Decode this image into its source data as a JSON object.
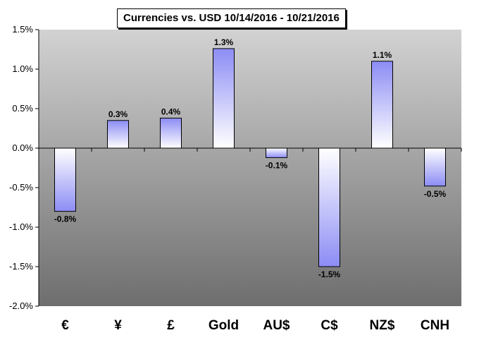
{
  "chart_data": {
    "type": "bar",
    "title": "Currencies vs. USD 10/14/2016 - 10/21/2016",
    "categories": [
      "€",
      "¥",
      "£",
      "Gold",
      "AU$",
      "C$",
      "NZ$",
      "CNH"
    ],
    "values": [
      -0.8,
      0.35,
      0.38,
      1.26,
      -0.12,
      -1.5,
      1.1,
      -0.48
    ],
    "data_labels": [
      "-0.8%",
      "0.3%",
      "0.4%",
      "1.3%",
      "-0.1%",
      "-1.5%",
      "1.1%",
      "-0.5%"
    ],
    "ylim": [
      -2.0,
      1.5
    ],
    "yticks": [
      1.5,
      1.0,
      0.5,
      0.0,
      -0.5,
      -1.0,
      -1.5,
      -2.0
    ],
    "ytick_labels": [
      "1.5%",
      "1.0%",
      "0.5%",
      "0.0%",
      "-0.5%",
      "-1.0%",
      "-1.5%",
      "-2.0%"
    ],
    "xlabel": "",
    "ylabel": "",
    "grid": false,
    "legend": "none",
    "colors": {
      "bar_gradient_start": "#8c8cf5",
      "bar_gradient_end": "#ffffff",
      "plot_bg_top": "#d2d2d2",
      "plot_bg_bottom": "#6e6e6e"
    }
  }
}
